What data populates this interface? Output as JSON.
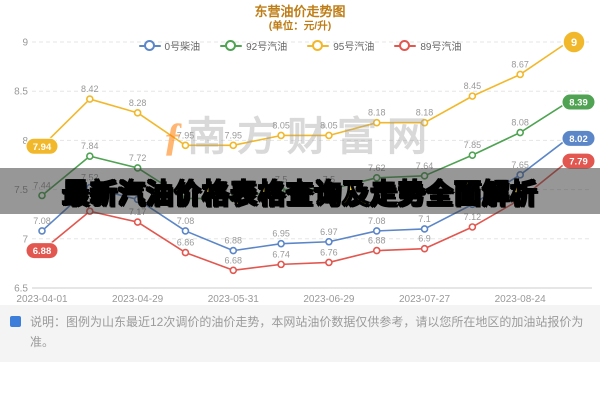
{
  "title": {
    "line1": "东营油价走势图",
    "line2": "(单位：元/升)"
  },
  "overlay_title": "最新汽油价格表格查询及走势全面解析",
  "watermark": {
    "logo": "ƒ",
    "text": "南方财富网"
  },
  "note": "说明：图例为山东最近12次调价的油价走势，本网站油价数据仅供参考，请以您所在地区的加油站报价为准。",
  "chart_data": {
    "type": "line",
    "title": "东营油价走势图 (单位：元/升)",
    "x_ticks": [
      "2023-04-01",
      "2023-04-29",
      "2023-05-31",
      "2023-06-29",
      "2023-07-27",
      "2023-08-24"
    ],
    "ylim": [
      6.5,
      9
    ],
    "y_ticks": [
      9,
      8.5,
      8,
      7.5,
      7,
      6.5
    ],
    "grid": "dashed-horizontal",
    "legend_position": "top",
    "series": [
      {
        "name": "0号柴油",
        "color": "#5b86c8",
        "values": [
          7.08,
          7.52,
          7.4,
          7.08,
          6.88,
          6.95,
          6.97,
          7.08,
          7.1,
          7.35,
          7.65,
          8.02
        ]
      },
      {
        "name": "92号汽油",
        "color": "#4fa352",
        "values": [
          7.44,
          7.84,
          7.72,
          7.41,
          7.41,
          7.5,
          7.5,
          7.62,
          7.64,
          7.85,
          8.08,
          8.39
        ]
      },
      {
        "name": "95号汽油",
        "color": "#f2b82b",
        "values": [
          7.94,
          8.42,
          8.28,
          7.95,
          7.95,
          8.05,
          8.05,
          8.18,
          8.18,
          8.45,
          8.67,
          9
        ]
      },
      {
        "name": "89号汽油",
        "color": "#e2574f",
        "values": [
          6.88,
          7.28,
          7.17,
          6.86,
          6.68,
          6.74,
          6.76,
          6.88,
          6.9,
          7.12,
          7.4,
          7.79
        ]
      }
    ],
    "start_badges": [
      {
        "series": "95号汽油",
        "value": 7.94
      },
      {
        "series": "89号汽油",
        "value": 6.88
      }
    ],
    "end_badges": [
      {
        "series": "95号汽油",
        "value": 9
      },
      {
        "series": "92号汽油",
        "value": 8.39
      },
      {
        "series": "0号柴油",
        "value": 8.02
      },
      {
        "series": "89号汽油",
        "value": 7.79
      }
    ]
  }
}
